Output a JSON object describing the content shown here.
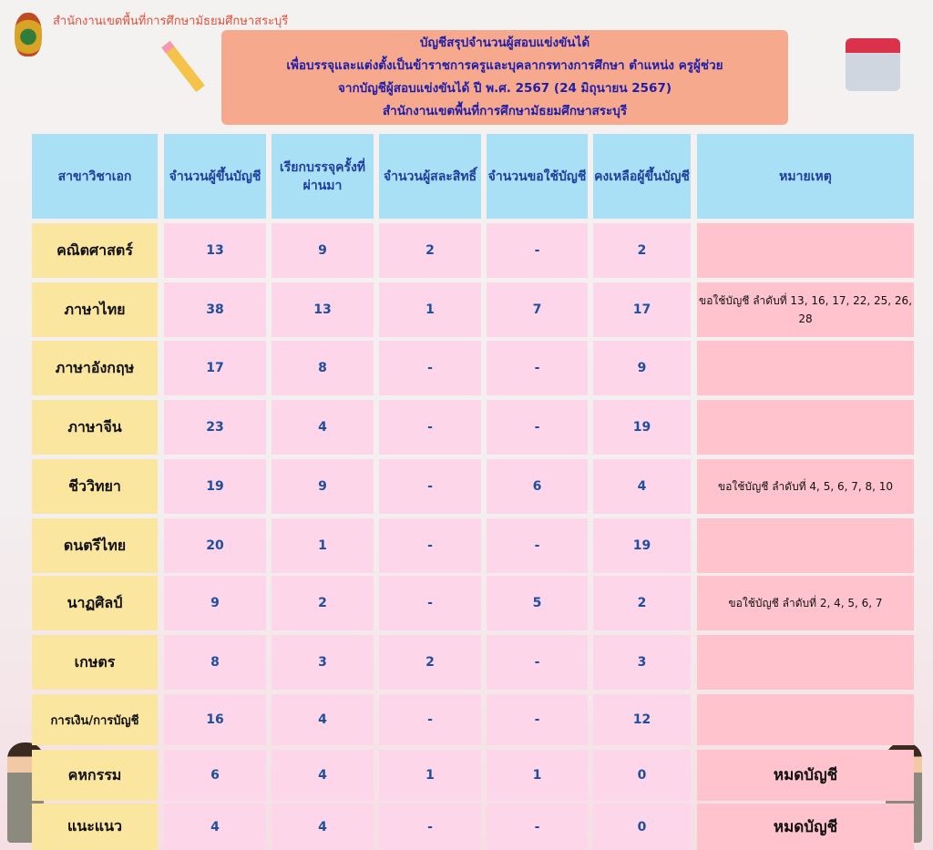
{
  "header": {
    "org": "สำนักงานเขตพื้นที่การศึกษามัธยมศึกษาสระบุรี",
    "title_lines": [
      "บัญชีสรุปจำนวนผู้สอบแข่งขันได้",
      "เพื่อบรรจุและแต่งตั้งเป็นข้าราชการครูและบุคลากรทางการศึกษา ตำแหน่ง ครูผู้ช่วย",
      "จากบัญชีผู้สอบแข่งขันได้ ปี พ.ศ. 2567   (24 มิถุนายน 2567)",
      "สำนักงานเขตพื้นที่การศึกษามัธยมศึกษาสระบุรี"
    ]
  },
  "table": {
    "columns": [
      "สาขาวิชาเอก",
      "จำนวนผู้ขึ้นบัญชี",
      "เรียกบรรจุครั้งที่ผ่านมา",
      "จำนวนผู้สละสิทธิ์",
      "จำนวนขอใช้บัญชี",
      "คงเหลือผู้ขึ้นบัญชี",
      "หมายเหตุ"
    ],
    "rows": [
      [
        "คณิตศาสตร์",
        "13",
        "9",
        "2",
        "-",
        "2",
        ""
      ],
      [
        "ภาษาไทย",
        "38",
        "13",
        "1",
        "7",
        "17",
        "ขอใช้บัญชี ลำดับที่ 13, 16, 17, 22, 25, 26, 28"
      ],
      [
        "ภาษาอังกฤษ",
        "17",
        "8",
        "-",
        "-",
        "9",
        ""
      ],
      [
        "ภาษาจีน",
        "23",
        "4",
        "-",
        "-",
        "19",
        ""
      ],
      [
        "ชีววิทยา",
        "19",
        "9",
        "-",
        "6",
        "4",
        "ขอใช้บัญชี ลำดับที่ 4, 5, 6, 7, 8, 10"
      ],
      [
        "ดนตรีไทย",
        "20",
        "1",
        "-",
        "-",
        "19",
        ""
      ],
      [
        "นาฏศิลป์",
        "9",
        "2",
        "-",
        "5",
        "2",
        "ขอใช้บัญชี ลำดับที่ 2, 4, 5, 6, 7"
      ],
      [
        "เกษตร",
        "8",
        "3",
        "2",
        "-",
        "3",
        ""
      ],
      [
        "การเงิน/การบัญชี",
        "16",
        "4",
        "-",
        "-",
        "12",
        ""
      ],
      [
        "คหกรรม",
        "6",
        "4",
        "1",
        "1",
        "0",
        "หมดบัญชี"
      ],
      [
        "แนะแนว",
        "4",
        "4",
        "-",
        "-",
        "0",
        "หมดบัญชี"
      ]
    ]
  },
  "colors": {
    "header_bg": "#a9e0f5",
    "subject_bg": "#fbe6a0",
    "number_bg": "#fdd6ea",
    "note_bg": "#fec3cc",
    "number_text": "#1e4ea0",
    "banner_bg": "#f7a98e"
  }
}
